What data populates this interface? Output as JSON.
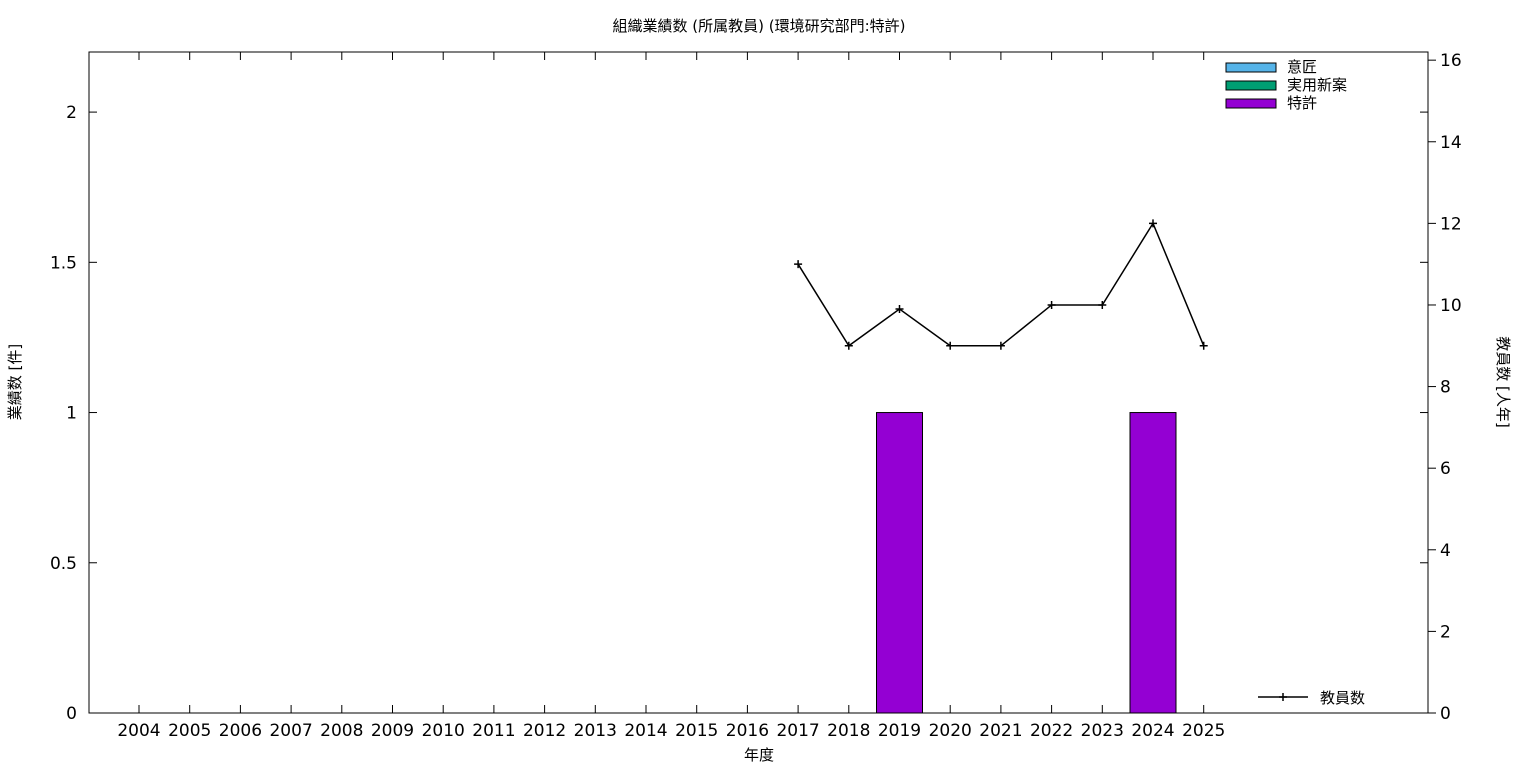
{
  "chart_data": {
    "type": "bar",
    "title": "組織業績数 (所属教員) (環境研究部門:特許)",
    "xlabel": "年度",
    "ylabel": "業績数 [件]",
    "y2label": "教員数 [人年]",
    "categories": [
      "2004",
      "2005",
      "2006",
      "2007",
      "2008",
      "2009",
      "2010",
      "2011",
      "2012",
      "2013",
      "2014",
      "2015",
      "2016",
      "2017",
      "2018",
      "2019",
      "2020",
      "2021",
      "2022",
      "2023",
      "2024",
      "2025"
    ],
    "ylim": [
      0,
      2.2
    ],
    "yticks": [
      "0",
      "0.5",
      "1",
      "1.5",
      "2"
    ],
    "y2lim": [
      0,
      16.2
    ],
    "y2ticks": [
      "0",
      "2",
      "4",
      "6",
      "8",
      "10",
      "12",
      "14",
      "16"
    ],
    "series": [
      {
        "name": "意匠",
        "kind": "bar",
        "color": "#56b4e9",
        "values": [
          0,
          0,
          0,
          0,
          0,
          0,
          0,
          0,
          0,
          0,
          0,
          0,
          0,
          0,
          0,
          0,
          0,
          0,
          0,
          0,
          0,
          0
        ]
      },
      {
        "name": "実用新案",
        "kind": "bar",
        "color": "#009e73",
        "values": [
          0,
          0,
          0,
          0,
          0,
          0,
          0,
          0,
          0,
          0,
          0,
          0,
          0,
          0,
          0,
          0,
          0,
          0,
          0,
          0,
          0,
          0
        ]
      },
      {
        "name": "特許",
        "kind": "bar",
        "color": "#9400d3",
        "values": [
          0,
          0,
          0,
          0,
          0,
          0,
          0,
          0,
          0,
          0,
          0,
          0,
          0,
          0,
          0,
          1,
          0,
          0,
          0,
          0,
          1,
          0
        ]
      },
      {
        "name": "教員数",
        "kind": "line",
        "axis": "y2",
        "color": "#000000",
        "values": [
          null,
          null,
          null,
          null,
          null,
          null,
          null,
          null,
          null,
          null,
          null,
          null,
          null,
          11,
          9,
          9.9,
          9,
          9,
          10,
          10,
          12,
          9
        ]
      }
    ],
    "legend_position": "top-right",
    "line_legend_position": "bottom-right",
    "grid": false
  }
}
